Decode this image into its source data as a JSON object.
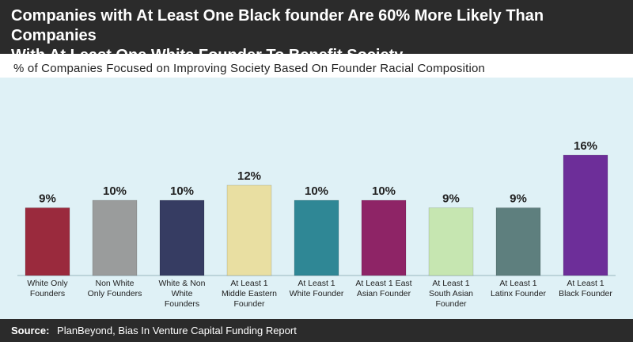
{
  "header": {
    "title_line1": "Companies with At Least One Black founder Are 60% More Likely Than Companies",
    "title_line2": "With At Least One White Founder To Benefit Society"
  },
  "chart_data": {
    "type": "bar",
    "title": "Companies with At Least One Black founder Are 60% More Likely Than Companies With At Least One White Founder To Benefit Society",
    "subtitle": "% of Companies Focused on Improving Society Based On Founder Racial Composition",
    "xlabel": "",
    "ylabel": "",
    "ylim": [
      0,
      18
    ],
    "grid": false,
    "unit": "%",
    "categories": [
      [
        "White Only",
        "Founders"
      ],
      [
        "Non White",
        "Only Founders"
      ],
      [
        "White & Non",
        "White",
        "Founders"
      ],
      [
        "At Least 1",
        "Middle Eastern",
        "Founder"
      ],
      [
        "At Least 1",
        "White Founder"
      ],
      [
        "At Least 1 East",
        "Asian Founder"
      ],
      [
        "At Least 1",
        "South Asian",
        "Founder"
      ],
      [
        "At Least 1",
        "Latinx Founder"
      ],
      [
        "At Least 1",
        "Black Founder"
      ]
    ],
    "values": [
      9,
      10,
      10,
      12,
      10,
      10,
      9,
      9,
      16
    ],
    "value_labels": [
      "9%",
      "10%",
      "10%",
      "12%",
      "10%",
      "10%",
      "9%",
      "9%",
      "16%"
    ],
    "colors": [
      "#9a2a3d",
      "#9a9c9c",
      "#363c62",
      "#e9dfa2",
      "#2f8795",
      "#8e2466",
      "#c6e6b1",
      "#5e7f7e",
      "#6d2e99"
    ]
  },
  "footer": {
    "source_label": "Source:",
    "source_text": "PlanBeyond, Bias In Venture Capital Funding Report"
  }
}
